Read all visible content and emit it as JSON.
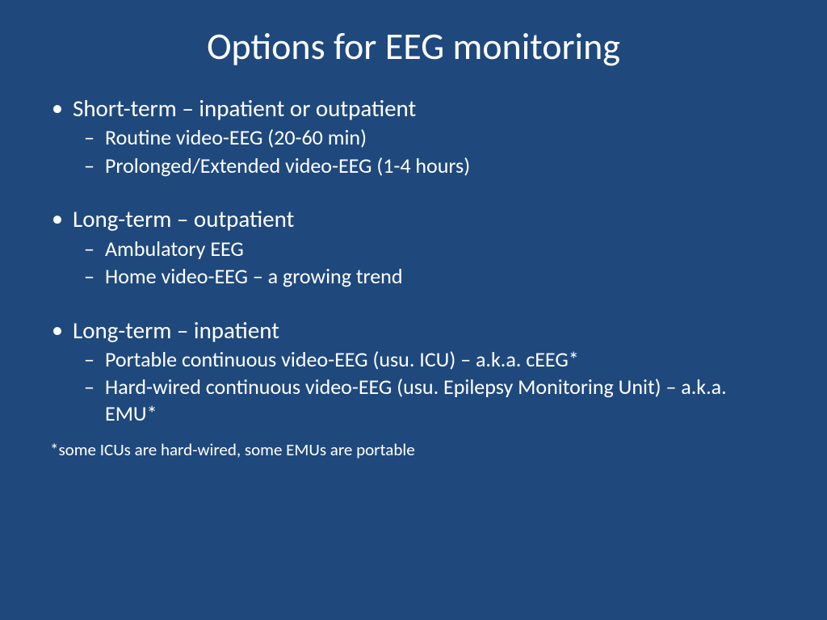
{
  "colors": {
    "background": "#1f497d",
    "text": "#ffffff"
  },
  "typography": {
    "font_family": "Calibri",
    "title_fontsize": 46,
    "level1_fontsize": 29,
    "level2_fontsize": 26,
    "footnote_fontsize": 21
  },
  "slide": {
    "title": "Options for EEG monitoring",
    "sections": [
      {
        "heading": "Short-term – inpatient or outpatient",
        "items": [
          "Routine video-EEG (20-60 min)",
          "Prolonged/Extended video-EEG (1-4 hours)"
        ]
      },
      {
        "heading": "Long-term – outpatient",
        "items": [
          "Ambulatory EEG",
          "Home video-EEG – a growing trend"
        ]
      },
      {
        "heading": "Long-term – inpatient",
        "items": [
          "Portable continuous video-EEG (usu. ICU) – a.k.a. cEEG*",
          "Hard-wired continuous video-EEG (usu. Epilepsy Monitoring Unit) – a.k.a. EMU*"
        ]
      }
    ],
    "footnote": "*some ICUs are hard-wired, some EMUs are portable"
  }
}
